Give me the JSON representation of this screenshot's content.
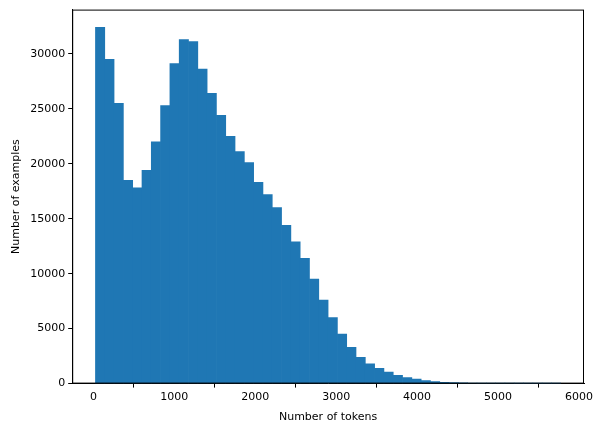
{
  "chart_data": {
    "type": "histogram",
    "x_label": "Number of tokens",
    "y_label": "Number of examples",
    "bins": [
      25,
      140,
      255,
      370,
      485,
      600,
      715,
      830,
      945,
      1060,
      1175,
      1290,
      1405,
      1520,
      1635,
      1750,
      1865,
      1980,
      2095,
      2210,
      2325,
      2440,
      2555,
      2670,
      2785,
      2900,
      3015,
      3130,
      3245,
      3360,
      3475,
      3590,
      3705,
      3820,
      3935,
      4050,
      4165,
      4280,
      4395,
      4510,
      4625,
      4740,
      4855,
      4970,
      5085,
      5200,
      5315,
      5430,
      5545,
      5660,
      5775
    ],
    "values": [
      32400,
      29500,
      25500,
      18500,
      17800,
      19400,
      22000,
      25300,
      29100,
      31300,
      31100,
      28600,
      26400,
      24400,
      22500,
      21100,
      20100,
      18300,
      17200,
      16000,
      14400,
      12900,
      11400,
      9500,
      7600,
      6000,
      4500,
      3300,
      2400,
      1800,
      1400,
      1050,
      750,
      550,
      400,
      280,
      180,
      120,
      90,
      60,
      40,
      25,
      15,
      10,
      8,
      5,
      3,
      2,
      1,
      1
    ],
    "color": "#1f77b4",
    "xlim": [
      -262.5,
      6062.5
    ],
    "xticks": [
      0,
      1000,
      2000,
      3000,
      4000,
      5000,
      6000
    ],
    "ylim": [
      0,
      34020
    ],
    "yticks": [
      0,
      5000,
      10000,
      15000,
      20000,
      25000,
      30000
    ],
    "grid": false
  }
}
